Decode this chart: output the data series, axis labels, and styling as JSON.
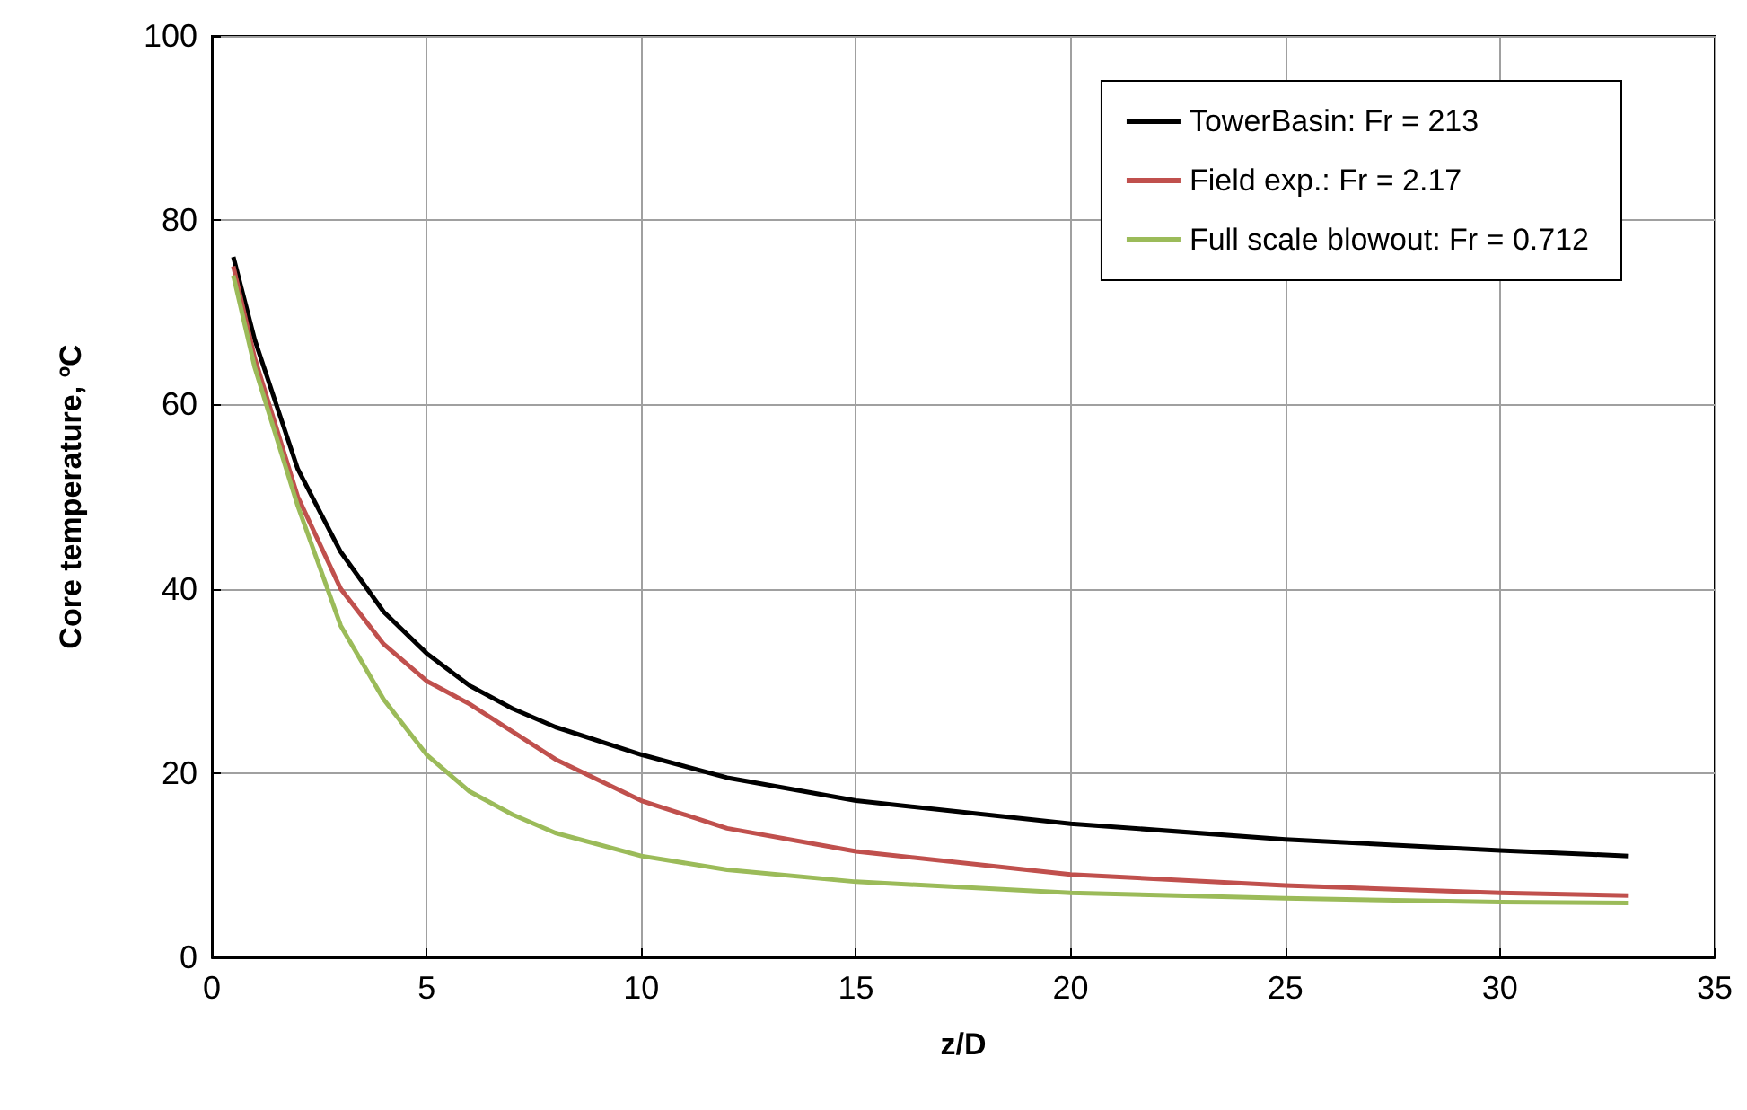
{
  "chart_data": {
    "type": "line",
    "xlabel": "z/D",
    "ylabel": "Core temperature, ºC",
    "xlim": [
      0,
      35
    ],
    "xticks": [
      0,
      5,
      10,
      15,
      20,
      25,
      30,
      35
    ],
    "ylim": [
      0,
      100
    ],
    "yticks": [
      0,
      20,
      40,
      60,
      80,
      100
    ],
    "grid": true,
    "legend": "top right",
    "marker": "none",
    "line_style": "solid",
    "x": [
      0.5,
      1,
      2,
      3,
      4,
      5,
      6,
      7,
      8,
      10,
      12,
      15,
      20,
      25,
      30,
      33
    ],
    "series": [
      {
        "name": "TowerBasin: Fr = 213",
        "color": "#000000",
        "values": [
          76,
          67,
          53,
          44,
          37.5,
          33,
          29.5,
          27,
          25,
          22,
          19.5,
          17,
          14.5,
          12.8,
          11.6,
          11
        ]
      },
      {
        "name": "Field exp.: Fr = 2.17",
        "color": "#c0504d",
        "values": [
          75,
          65,
          50,
          40,
          34,
          30,
          27.5,
          24.5,
          21.5,
          17,
          14,
          11.5,
          9,
          7.8,
          7,
          6.7
        ]
      },
      {
        "name": "Full scale blowout: Fr = 0.712",
        "color": "#9bbb59",
        "values": [
          74,
          64,
          49,
          36,
          28,
          22,
          18,
          15.5,
          13.5,
          11,
          9.5,
          8.2,
          7,
          6.4,
          6,
          5.9
        ]
      }
    ]
  }
}
